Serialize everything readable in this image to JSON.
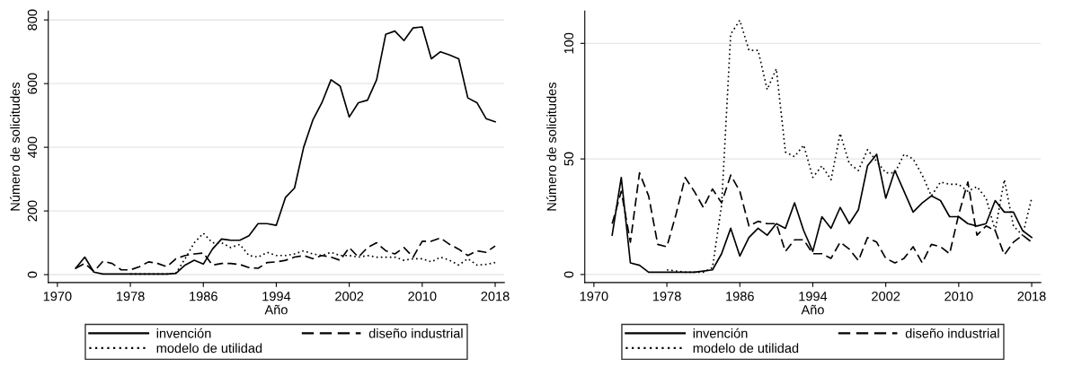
{
  "chart_data": [
    {
      "type": "line",
      "xlabel": "Año",
      "ylabel": "Número de solicitudes",
      "xlim": [
        1969,
        2019
      ],
      "ylim": [
        -25,
        828
      ],
      "xticks": [
        1970,
        1978,
        1986,
        1994,
        2002,
        2010,
        2018
      ],
      "yticks": [
        0,
        200,
        400,
        600,
        800
      ],
      "grid": "y",
      "legend": "bottom",
      "x": [
        1972,
        1973,
        1974,
        1975,
        1976,
        1977,
        1978,
        1979,
        1980,
        1981,
        1982,
        1983,
        1984,
        1985,
        1986,
        1987,
        1988,
        1989,
        1990,
        1991,
        1992,
        1993,
        1994,
        1995,
        1996,
        1997,
        1998,
        1999,
        2000,
        2001,
        2002,
        2003,
        2004,
        2005,
        2006,
        2007,
        2008,
        2009,
        2010,
        2011,
        2012,
        2013,
        2014,
        2015,
        2016,
        2017,
        2018
      ],
      "series": [
        {
          "name": "invención",
          "color": "#000000",
          "line_style": "solid",
          "values": [
            20,
            55,
            8,
            2,
            2,
            2,
            2,
            2,
            2,
            2,
            2,
            4,
            30,
            45,
            33,
            80,
            112,
            108,
            108,
            122,
            160,
            160,
            155,
            242,
            272,
            400,
            485,
            540,
            612,
            592,
            495,
            540,
            548,
            612,
            755,
            765,
            735,
            775,
            778,
            678,
            700,
            690,
            678,
            555,
            540,
            490,
            480
          ]
        },
        {
          "name": "diseño industrial",
          "color": "#000000",
          "line_style": "dashed",
          "values": [
            20,
            35,
            10,
            42,
            35,
            15,
            15,
            25,
            40,
            35,
            25,
            50,
            60,
            65,
            68,
            30,
            35,
            35,
            32,
            22,
            20,
            38,
            40,
            45,
            55,
            60,
            50,
            60,
            55,
            45,
            85,
            55,
            85,
            100,
            75,
            65,
            85,
            55,
            105,
            105,
            115,
            95,
            80,
            60,
            75,
            70,
            90
          ]
        },
        {
          "name": "modelo de utilidad",
          "color": "#000000",
          "line_style": "dotted",
          "values": [
            null,
            null,
            null,
            null,
            null,
            null,
            2,
            2,
            2,
            2,
            2,
            5,
            50,
            100,
            130,
            100,
            100,
            85,
            95,
            60,
            55,
            70,
            60,
            60,
            65,
            75,
            65,
            60,
            70,
            60,
            60,
            55,
            60,
            55,
            55,
            55,
            45,
            50,
            50,
            40,
            55,
            45,
            30,
            50,
            30,
            32,
            38
          ]
        }
      ]
    },
    {
      "type": "line",
      "xlabel": "Año",
      "ylabel": "Número de solicitudes",
      "xlim": [
        1969,
        2019
      ],
      "ylim": [
        -3.5,
        114
      ],
      "xticks": [
        1970,
        1978,
        1986,
        1994,
        2002,
        2010,
        2018
      ],
      "yticks": [
        0,
        50,
        100
      ],
      "grid": "y",
      "legend": "bottom",
      "x": [
        1972,
        1973,
        1974,
        1975,
        1976,
        1977,
        1978,
        1979,
        1980,
        1981,
        1982,
        1983,
        1984,
        1985,
        1986,
        1987,
        1988,
        1989,
        1990,
        1991,
        1992,
        1993,
        1994,
        1995,
        1996,
        1997,
        1998,
        1999,
        2000,
        2001,
        2002,
        2003,
        2004,
        2005,
        2006,
        2007,
        2008,
        2009,
        2010,
        2011,
        2012,
        2013,
        2014,
        2015,
        2016,
        2017,
        2018
      ],
      "series": [
        {
          "name": "invención",
          "color": "#000000",
          "line_style": "solid",
          "values": [
            17,
            42,
            5,
            4,
            1,
            1,
            1,
            1,
            1,
            1,
            1.5,
            2,
            9,
            20,
            8,
            16,
            20,
            17,
            22,
            20,
            31,
            19,
            10,
            25,
            20,
            29,
            22,
            28,
            47,
            52,
            33,
            45,
            36,
            27,
            31,
            34,
            32,
            25,
            25,
            22,
            21,
            22,
            32,
            27,
            27,
            19,
            16
          ]
        },
        {
          "name": "diseño industrial",
          "color": "#000000",
          "line_style": "dashed",
          "values": [
            22,
            36,
            14,
            44,
            34,
            13,
            12,
            26,
            42,
            36,
            29,
            37,
            31,
            43,
            36,
            21,
            23,
            22,
            22,
            10,
            15,
            15,
            9,
            9,
            7,
            14,
            11,
            6,
            16,
            14,
            7,
            5,
            7,
            12,
            5,
            13,
            12,
            9,
            26,
            40,
            17,
            21,
            19,
            8.5,
            14,
            17,
            14
          ]
        },
        {
          "name": "modelo de utilidad",
          "color": "#000000",
          "line_style": "dotted",
          "values": [
            null,
            null,
            null,
            null,
            null,
            null,
            2,
            1.5,
            1,
            1,
            1,
            3,
            30,
            104,
            110,
            97,
            97,
            80,
            89,
            53,
            51,
            56,
            42,
            47,
            41,
            61,
            48,
            45,
            54,
            49,
            44,
            44,
            52,
            50,
            43,
            34,
            40,
            39,
            39,
            36,
            38,
            33,
            19,
            41,
            21,
            17,
            33
          ]
        }
      ]
    }
  ]
}
